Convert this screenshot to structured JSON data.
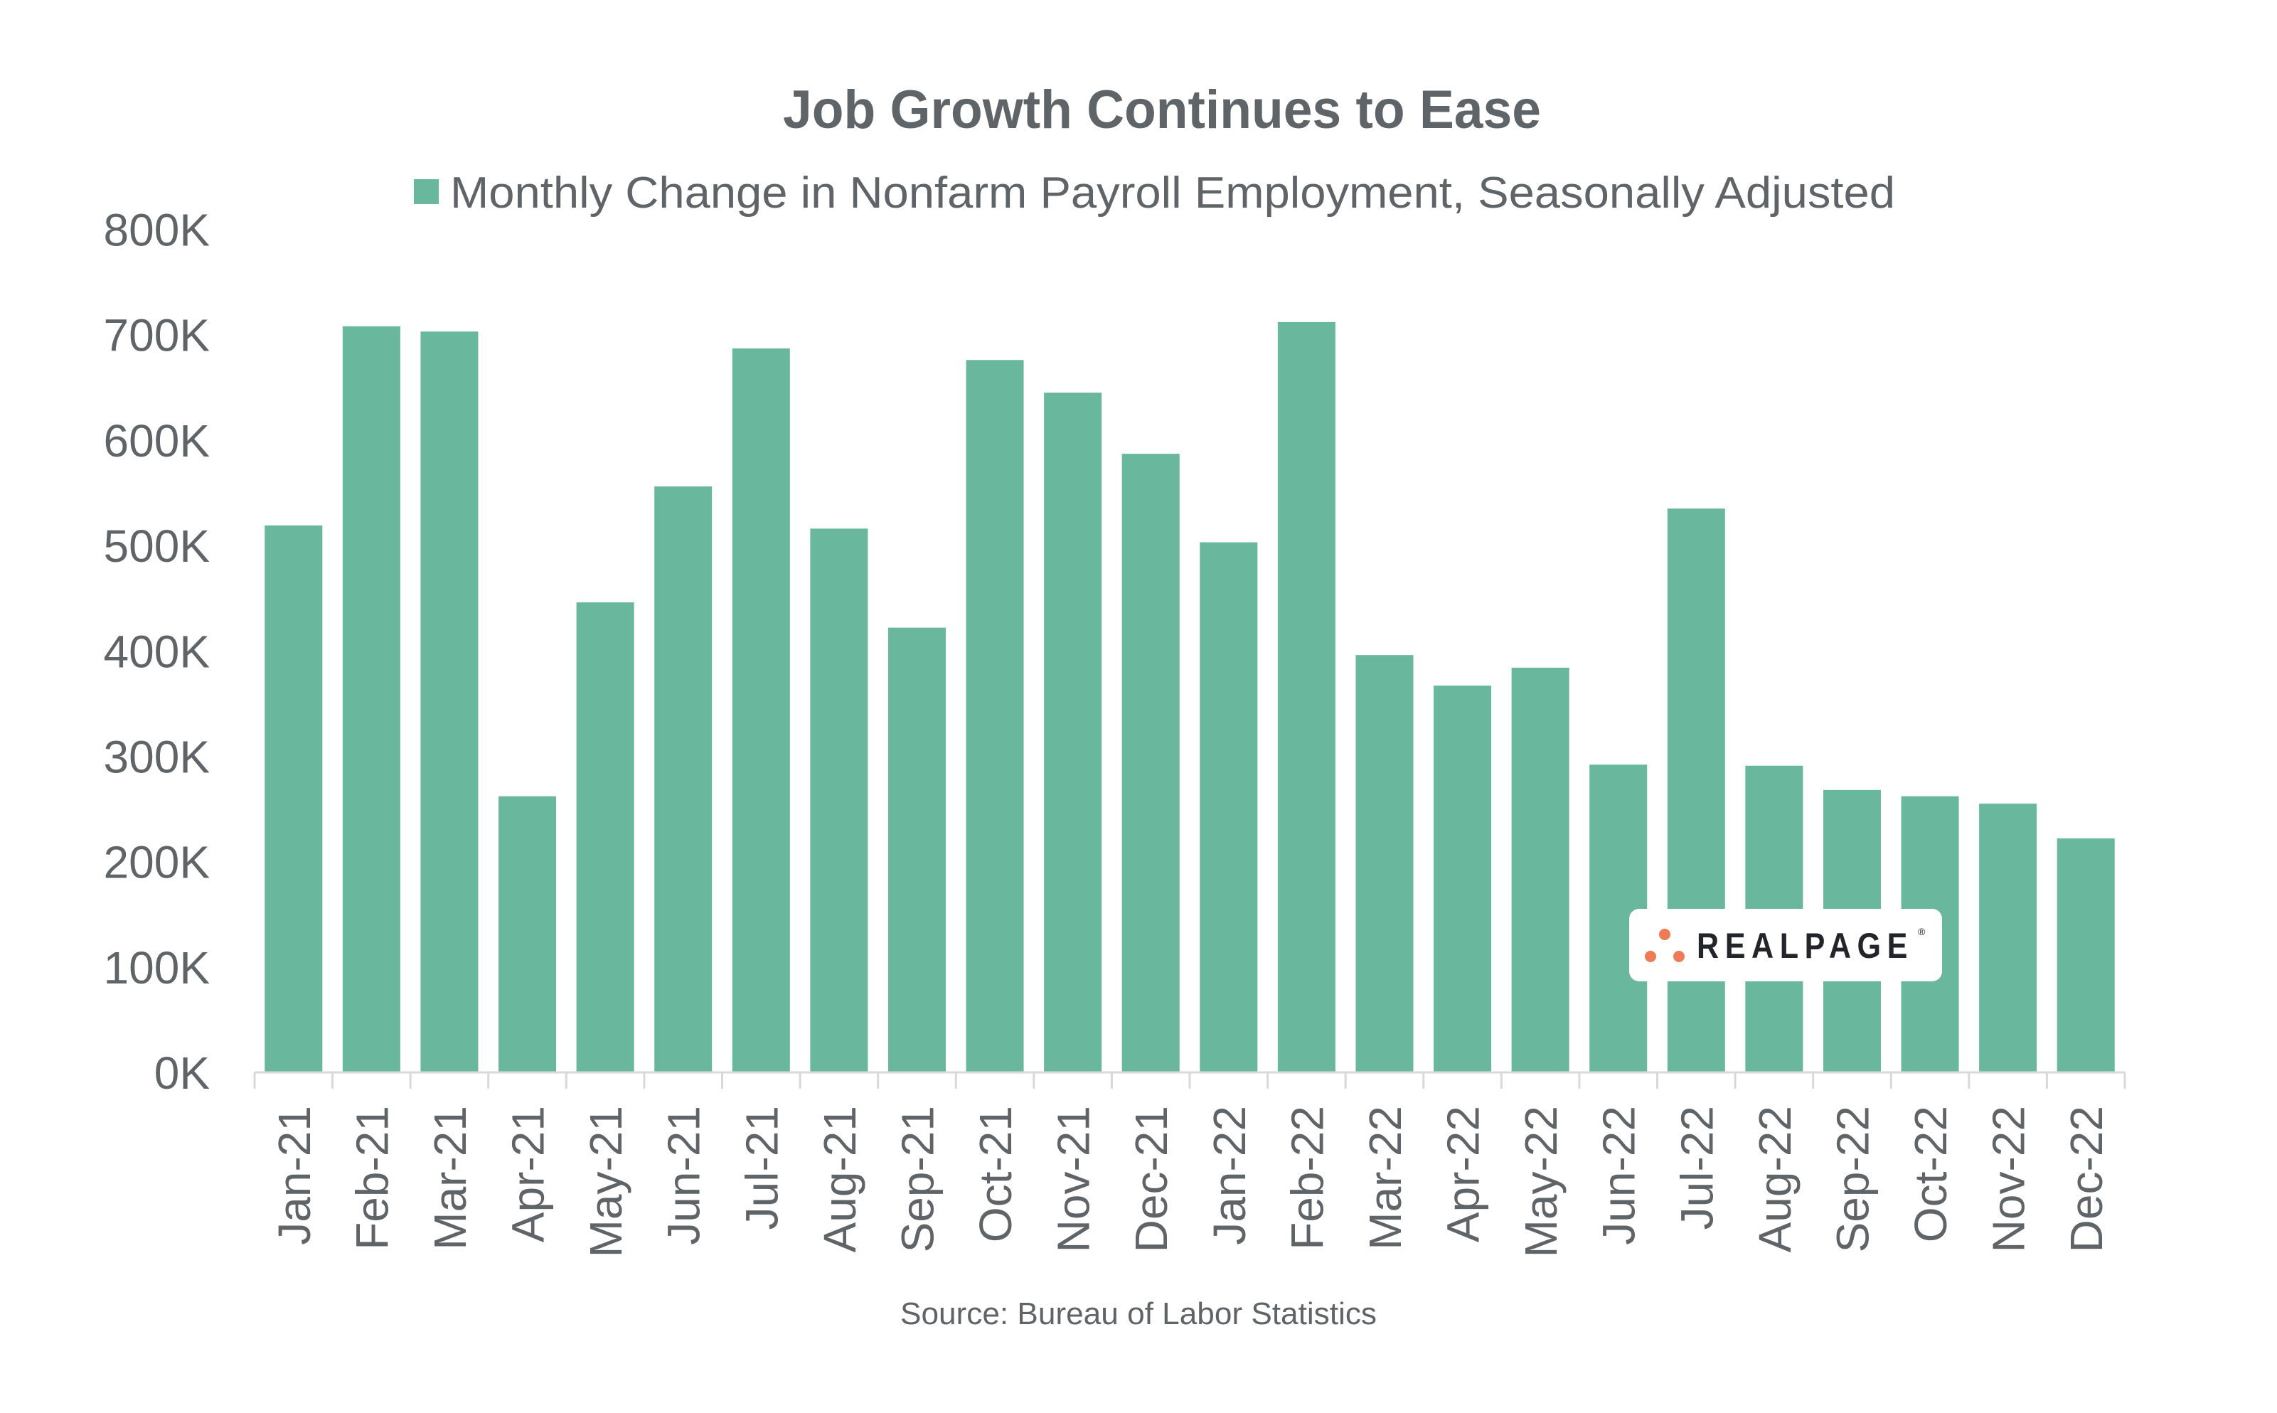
{
  "chart_data": {
    "type": "bar",
    "title": "Job Growth Continues to Ease",
    "legend": [
      {
        "label": "Monthly Change in Nonfarm Payroll Employment, Seasonally Adjusted",
        "color": "#69b79d"
      }
    ],
    "legend_position": "top-center",
    "xlabel": "",
    "ylabel": "",
    "ylim": [
      0,
      800000
    ],
    "yticks": [
      0,
      100000,
      200000,
      300000,
      400000,
      500000,
      600000,
      700000,
      800000
    ],
    "ytick_labels": [
      "0K",
      "100K",
      "200K",
      "300K",
      "400K",
      "500K",
      "600K",
      "700K",
      "800K"
    ],
    "grid": false,
    "categories": [
      "Jan-21",
      "Feb-21",
      "Mar-21",
      "Apr-21",
      "May-21",
      "Jun-21",
      "Jul-21",
      "Aug-21",
      "Sep-21",
      "Oct-21",
      "Nov-21",
      "Dec-21",
      "Jan-22",
      "Feb-22",
      "Mar-22",
      "Apr-22",
      "May-22",
      "Jun-22",
      "Jul-22",
      "Aug-22",
      "Sep-22",
      "Oct-22",
      "Nov-22",
      "Dec-22"
    ],
    "series": [
      {
        "name": "Monthly Change in Nonfarm Payroll Employment, Seasonally Adjusted",
        "color": "#69b79d",
        "values": [
          519000,
          708000,
          703000,
          262000,
          446000,
          556000,
          687000,
          516000,
          422000,
          676000,
          645000,
          587000,
          503000,
          712000,
          396000,
          367000,
          384000,
          292000,
          535000,
          291000,
          268000,
          262000,
          255000,
          222000
        ]
      }
    ],
    "source": "Source: Bureau of Labor Statistics"
  },
  "logo": {
    "text": "REALPAGE",
    "registered_mark": "®",
    "dot_color": "#ef7a56",
    "text_color": "#22252a"
  },
  "colors": {
    "text": "#5f6468",
    "axis": "#d9d9d9",
    "bar": "#69b79d"
  }
}
